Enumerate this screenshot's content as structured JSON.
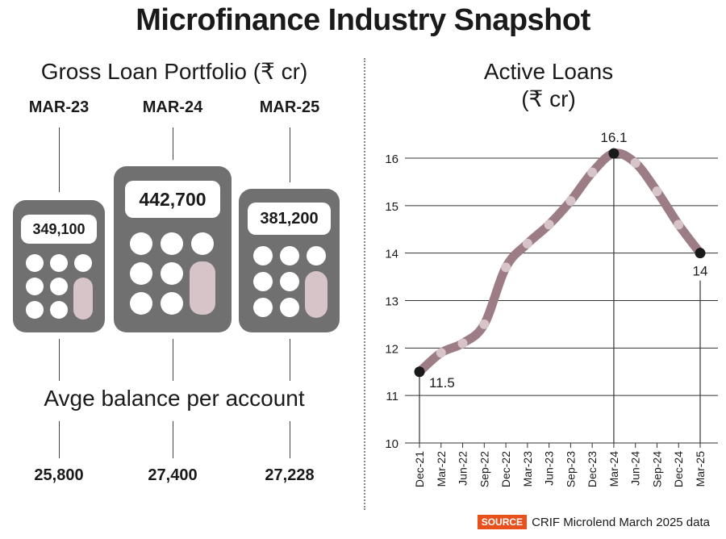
{
  "title": "Microfinance Industry Snapshot",
  "left_panel": {
    "title": "Gross Loan Portfolio (₹ cr)",
    "periods": [
      {
        "label": "MAR-23",
        "gross_loan_portfolio": "349,100",
        "avg_balance": "25,800"
      },
      {
        "label": "MAR-24",
        "gross_loan_portfolio": "442,700",
        "avg_balance": "27,400"
      },
      {
        "label": "MAR-25",
        "gross_loan_portfolio": "381,200",
        "avg_balance": "27,228"
      }
    ],
    "avg_title": "Avge balance per account"
  },
  "right_panel": {
    "title_line1": "Active Loans",
    "title_line2": "(₹ cr)"
  },
  "colors": {
    "calculator_body": "#707070",
    "calculator_tall_key": "#d6c4c8",
    "line": "#9c7d86",
    "point": "#d6c4c8",
    "highlight_point": "#1a1a1a",
    "source_badge": "#e8501c"
  },
  "chart_data": {
    "type": "line",
    "title": "Active Loans",
    "ylabel": "(₹ cr)",
    "xlabel": "",
    "categories": [
      "Dec-21",
      "Mar-22",
      "Jun-22",
      "Sep-22",
      "Dec-22",
      "Mar-23",
      "Jun-23",
      "Sep-23",
      "Dec-23",
      "Mar-24",
      "Jun-24",
      "Sep-24",
      "Dec-24",
      "Mar-25"
    ],
    "values": [
      11.5,
      11.9,
      12.1,
      12.5,
      13.7,
      14.2,
      14.6,
      15.1,
      15.7,
      16.1,
      15.9,
      15.3,
      14.6,
      14.0
    ],
    "ylim": [
      10,
      16
    ],
    "yticks": [
      10,
      11,
      12,
      13,
      14,
      15,
      16
    ],
    "grid": true,
    "annotations": [
      {
        "index": 0,
        "label": "11.5"
      },
      {
        "index": 9,
        "label": "16.1"
      },
      {
        "index": 13,
        "label": "14"
      }
    ]
  },
  "source": {
    "badge": "SOURCE",
    "text": "CRIF Microlend March 2025 data"
  }
}
